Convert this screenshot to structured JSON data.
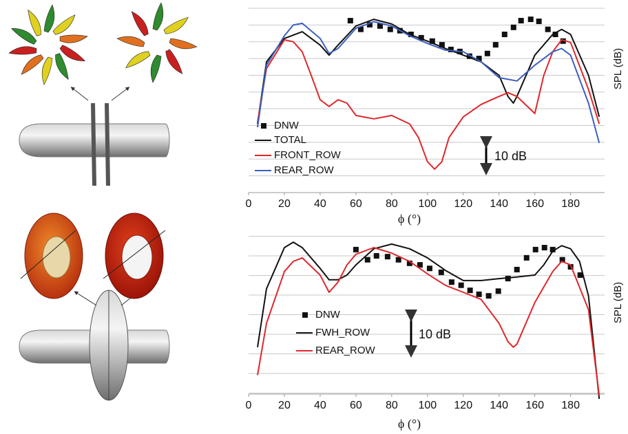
{
  "chart_data": [
    {
      "type": "line",
      "x_label": "ϕ (°)",
      "y_label": "SPL (dB)",
      "xlim": [
        0,
        199
      ],
      "xticks": [
        0,
        20,
        40,
        60,
        80,
        100,
        120,
        140,
        160,
        180
      ],
      "ylim": [
        0,
        55
      ],
      "yticks": [
        5,
        10,
        15,
        20,
        25,
        30,
        35,
        40,
        45,
        50,
        55
      ],
      "grid": true,
      "annotations": [
        {
          "text": "10 dB"
        }
      ],
      "series": [
        {
          "name": "DNW",
          "color": "#111111",
          "style": "markers",
          "x": [
            56.9,
            62.7,
            67.7,
            73.5,
            79.2,
            84.6,
            90.8,
            96.5,
            102.7,
            108.1,
            113.1,
            118.1,
            123.5,
            128.8,
            133.5,
            138.1,
            143.1,
            148.1,
            152.3,
            157.7,
            162.3,
            167.3,
            171.5,
            175.8
          ],
          "values": [
            51.3,
            48.7,
            50.1,
            49.7,
            48.7,
            48.3,
            47.2,
            46.2,
            45.2,
            44.1,
            42.7,
            42.1,
            40.7,
            40.0,
            41.5,
            44.1,
            47.2,
            49.3,
            51.3,
            51.7,
            51.1,
            48.7,
            47.2,
            45.2
          ]
        },
        {
          "name": "TOTAL",
          "color": "#111111",
          "style": "line",
          "x": [
            5,
            10,
            20,
            30,
            40,
            45,
            50,
            60,
            70,
            80,
            90,
            100,
            110,
            120,
            130,
            140,
            145,
            148,
            150,
            160,
            170,
            175,
            180,
            190,
            196
          ],
          "values": [
            20.5,
            39,
            46,
            48,
            44,
            41,
            44,
            49.7,
            51.7,
            50.3,
            47.2,
            45.2,
            43,
            41,
            39,
            35,
            28.7,
            26.7,
            28.7,
            41,
            47.2,
            48.7,
            47.2,
            35,
            22.6
          ]
        },
        {
          "name": "FRONT_ROW",
          "color": "#e0262a",
          "style": "line",
          "x": [
            5,
            10,
            20,
            25,
            30,
            35,
            40,
            45,
            50,
            55,
            60,
            70,
            80,
            90,
            95,
            100,
            104,
            108,
            112,
            120,
            130,
            140,
            145,
            150,
            160,
            165,
            170,
            175,
            180,
            190,
            196
          ],
          "values": [
            21,
            37,
            45.6,
            45,
            42,
            35,
            27.7,
            25.7,
            27.7,
            26.7,
            23,
            22,
            23,
            20.5,
            16.4,
            9.2,
            7,
            9.2,
            16.4,
            22.6,
            26.3,
            28.7,
            29.8,
            28.7,
            23.6,
            35,
            42,
            45.6,
            44.8,
            30.8,
            20.5
          ]
        },
        {
          "name": "REAR_ROW",
          "color": "#3a5fbf",
          "style": "line",
          "x": [
            5,
            10,
            20,
            25,
            30,
            40,
            45,
            50,
            60,
            70,
            80,
            90,
            100,
            110,
            120,
            130,
            140,
            150,
            160,
            170,
            175,
            180,
            190,
            196
          ],
          "values": [
            19.5,
            38,
            46.8,
            50,
            50.5,
            46,
            41.5,
            43,
            49,
            51,
            49.7,
            46.8,
            44.5,
            42.5,
            42,
            39,
            34.3,
            33.3,
            38,
            42,
            43,
            41,
            26.7,
            14.8
          ]
        }
      ]
    },
    {
      "type": "line",
      "x_label": "ϕ (°)",
      "y_label": "SPL (dB)",
      "xlim": [
        0,
        199
      ],
      "xticks": [
        0,
        20,
        40,
        60,
        80,
        100,
        120,
        140,
        160,
        180
      ],
      "ylim": [
        0,
        45
      ],
      "yticks": [
        5,
        10,
        15,
        20,
        25,
        30,
        35,
        40,
        45
      ],
      "grid": true,
      "annotations": [
        {
          "text": "10 dB"
        }
      ],
      "series": [
        {
          "name": "DNW",
          "color": "#111111",
          "style": "markers",
          "x": [
            60.0,
            66.5,
            71.5,
            77.7,
            83.8,
            90.0,
            95.8,
            101.2,
            107.7,
            113.5,
            118.8,
            123.8,
            128.8,
            134.2,
            139.6,
            145.0,
            150.0,
            155.4,
            160.4,
            165.4,
            170.0,
            175.4,
            180.0,
            185.4
          ],
          "values": [
            41.6,
            39.0,
            40.0,
            39.8,
            39.0,
            38.1,
            37.7,
            36.8,
            35.8,
            33.3,
            32.5,
            31.2,
            30.2,
            29.8,
            31.0,
            34.2,
            36.5,
            39.5,
            41.6,
            42.1,
            41.6,
            39.0,
            37.2,
            35.1
          ]
        },
        {
          "name": "FWH_ROW",
          "color": "#111111",
          "style": "line",
          "x": [
            5,
            10,
            20,
            25,
            30,
            40,
            45,
            50,
            55,
            60,
            70,
            80,
            90,
            100,
            110,
            120,
            130,
            140,
            150,
            160,
            165,
            170,
            175,
            180,
            185,
            190,
            196
          ],
          "values": [
            16.7,
            31.6,
            42.1,
            43.5,
            42.1,
            36.8,
            33.9,
            33.9,
            35.1,
            37.7,
            41.8,
            43,
            41.8,
            39.5,
            36.3,
            33.7,
            33.7,
            34.2,
            34.6,
            35.1,
            37.7,
            41.2,
            42.6,
            41.8,
            38.6,
            29.8,
            3.5
          ]
        },
        {
          "name": "REAR_ROW",
          "color": "#e0262a",
          "style": "line",
          "x": [
            5,
            10,
            20,
            25,
            30,
            40,
            45,
            50,
            55,
            60,
            70,
            80,
            90,
            100,
            110,
            120,
            130,
            140,
            145,
            148,
            150,
            160,
            170,
            175,
            180,
            190,
            196
          ],
          "values": [
            9.6,
            22.8,
            36,
            38.6,
            39.5,
            35.1,
            30.7,
            33.3,
            37.7,
            40.4,
            42.1,
            40.7,
            38.6,
            35.4,
            32.5,
            30.7,
            28.9,
            22.8,
            18.1,
            16.7,
            17.5,
            28.1,
            36,
            38.6,
            37.7,
            26.3,
            4.4
          ]
        }
      ]
    }
  ]
}
